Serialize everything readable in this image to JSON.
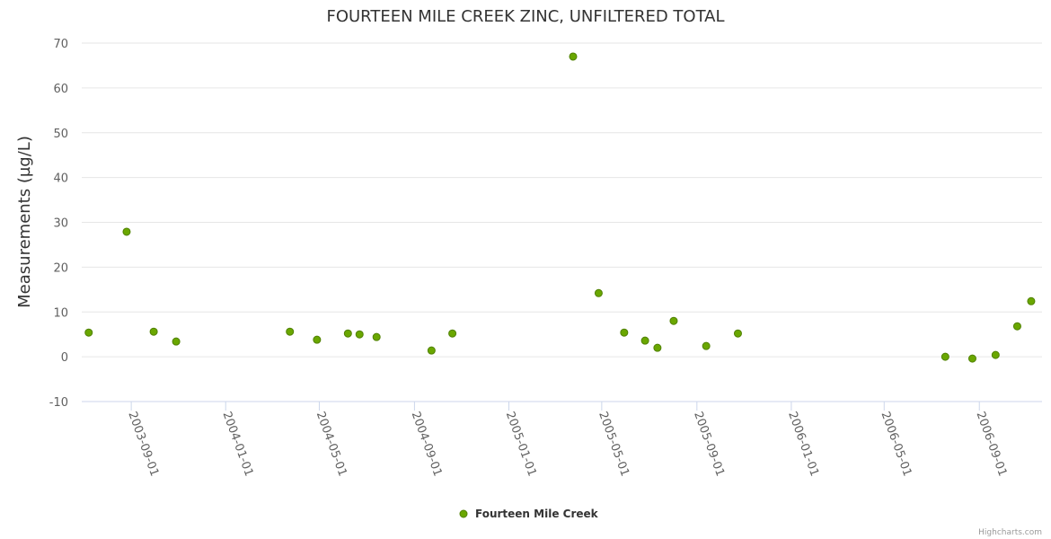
{
  "chart_data": {
    "type": "scatter",
    "title": "FOURTEEN MILE CREEK ZINC, UNFILTERED TOTAL",
    "xlabel": "",
    "ylabel": "Measurements (µg/L)",
    "ylim": [
      -10,
      70
    ],
    "yticks": [
      -10,
      0,
      10,
      20,
      30,
      40,
      50,
      60,
      70
    ],
    "xlim": [
      "2003-06-29",
      "2006-11-21"
    ],
    "xticks": [
      "2003-09-01",
      "2004-01-01",
      "2004-05-01",
      "2004-09-01",
      "2005-01-01",
      "2005-05-01",
      "2005-09-01",
      "2006-01-01",
      "2006-05-01",
      "2006-09-01"
    ],
    "grid": true,
    "legend_position": "bottom-center",
    "series": [
      {
        "name": "Fourteen Mile Creek",
        "color": "#6aa700",
        "points": [
          [
            "2003-07-08",
            5.4
          ],
          [
            "2003-08-26",
            27.9
          ],
          [
            "2003-09-30",
            5.6
          ],
          [
            "2003-10-29",
            3.4
          ],
          [
            "2004-03-24",
            5.6
          ],
          [
            "2004-04-28",
            3.8
          ],
          [
            "2004-06-07",
            5.2
          ],
          [
            "2004-06-22",
            5.0
          ],
          [
            "2004-07-14",
            4.4
          ],
          [
            "2004-09-23",
            1.4
          ],
          [
            "2004-10-20",
            5.2
          ],
          [
            "2005-03-25",
            67.0
          ],
          [
            "2005-04-27",
            14.2
          ],
          [
            "2005-05-30",
            5.4
          ],
          [
            "2005-06-26",
            3.6
          ],
          [
            "2005-07-12",
            2.0
          ],
          [
            "2005-08-02",
            8.0
          ],
          [
            "2005-09-13",
            2.4
          ],
          [
            "2005-10-24",
            5.2
          ],
          [
            "2006-07-19",
            0.0
          ],
          [
            "2006-08-23",
            -0.4
          ],
          [
            "2006-09-22",
            0.4
          ],
          [
            "2006-10-20",
            6.8
          ],
          [
            "2006-11-07",
            12.4
          ]
        ]
      }
    ]
  },
  "credit": "Highcharts.com"
}
